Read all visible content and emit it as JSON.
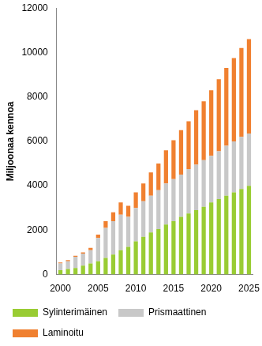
{
  "chart_data": {
    "type": "bar",
    "stacked": true,
    "grid": false,
    "legend": "bottom",
    "y_label": "Miljoonaa kennoa",
    "categories": [
      "2000",
      null,
      null,
      null,
      null,
      "2005",
      null,
      null,
      null,
      null,
      "2010",
      null,
      null,
      null,
      null,
      "2015",
      null,
      null,
      null,
      null,
      "2020",
      null,
      null,
      null,
      null,
      "2025"
    ],
    "series": [
      {
        "name": "Sylinterimäinen",
        "color": "#99cc33",
        "values": [
          200,
          250,
          300,
          400,
          500,
          600,
          750,
          900,
          1100,
          1250,
          1500,
          1700,
          1900,
          2050,
          2250,
          2400,
          2600,
          2750,
          2900,
          3050,
          3250,
          3400,
          3550,
          3700,
          3850,
          4000
        ]
      },
      {
        "name": "Prismaattinen",
        "color": "#c8c8c8",
        "values": [
          300,
          350,
          500,
          550,
          600,
          1050,
          1350,
          1500,
          1600,
          1350,
          1500,
          1600,
          1650,
          1750,
          1850,
          1900,
          1900,
          2000,
          2050,
          2100,
          2100,
          2150,
          2250,
          2300,
          2350,
          2350
        ]
      },
      {
        "name": "Laminoitu",
        "color": "#f08030",
        "values": [
          50,
          50,
          50,
          50,
          100,
          150,
          300,
          400,
          550,
          500,
          700,
          800,
          1050,
          1200,
          1500,
          1750,
          2000,
          2150,
          2450,
          2650,
          2950,
          3250,
          3500,
          3750,
          4000,
          4250
        ]
      }
    ],
    "ylim": [
      0,
      12000
    ],
    "yticks": [
      0,
      2000,
      4000,
      6000,
      8000,
      10000,
      12000
    ]
  }
}
